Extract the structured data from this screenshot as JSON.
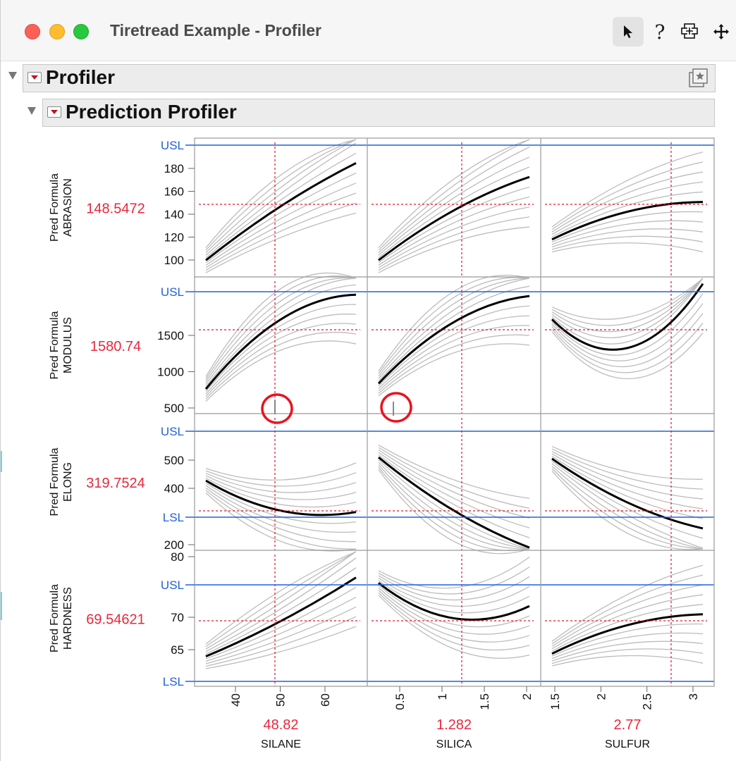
{
  "window": {
    "title": "Tiretread Example - Profiler",
    "toolbar": [
      {
        "name": "arrow-select",
        "icon": "arrow-icon"
      },
      {
        "name": "help",
        "label": "?",
        "icon": "question-icon"
      },
      {
        "name": "zoom",
        "icon": "magnifier-plus-icon"
      },
      {
        "name": "move",
        "icon": "move-cross-icon"
      }
    ]
  },
  "outline": {
    "profiler_title": "Profiler",
    "prediction_title": "Prediction Profiler"
  },
  "profiler": {
    "rows": [
      {
        "response": "Pred Formula",
        "name": "ABRASION",
        "current": "148.5472",
        "ticks": [
          "100",
          "120",
          "140",
          "160",
          "180"
        ],
        "spec": [
          "USL"
        ]
      },
      {
        "response": "Pred Formula",
        "name": "MODULUS",
        "current": "1580.74",
        "ticks": [
          "500",
          "1000",
          "1500"
        ],
        "spec": [
          "USL"
        ]
      },
      {
        "response": "Pred Formula",
        "name": "ELONG",
        "current": "319.7524",
        "ticks": [
          "200",
          "400",
          "500"
        ],
        "spec": [
          "USL",
          "LSL"
        ]
      },
      {
        "response": "Pred Formula",
        "name": "HARDNESS",
        "current": "69.54621",
        "ticks": [
          "65",
          "70",
          "80"
        ],
        "spec": [
          "USL",
          "LSL"
        ]
      }
    ],
    "factors": [
      {
        "name": "SILANE",
        "current": "48.82",
        "ticks": [
          "40",
          "50",
          "60"
        ]
      },
      {
        "name": "SILICA",
        "current": "1.282",
        "ticks": [
          "0.5",
          "1",
          "1.5",
          "2"
        ]
      },
      {
        "name": "SULFUR",
        "current": "2.77",
        "ticks": [
          "1.5",
          "2",
          "2.5",
          "3"
        ]
      }
    ],
    "colors": {
      "current_value": "#e8283c",
      "spec_line": "#2060e0",
      "crosshair": "#e0162c",
      "highlight_circle": "#e8141e"
    }
  }
}
